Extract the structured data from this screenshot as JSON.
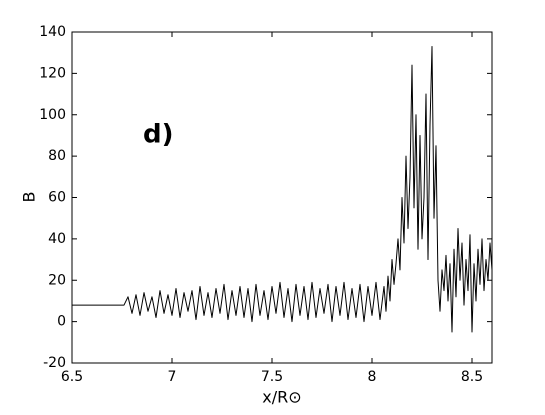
{
  "chart_data": {
    "type": "line",
    "xlabel": "x/R⊙",
    "ylabel": "B",
    "annotation": "d)",
    "color": "#000000",
    "xlim": [
      6.5,
      8.6
    ],
    "xticks": [
      6.5,
      7,
      7.5,
      8,
      8.5
    ],
    "ylim": [
      -20,
      140
    ],
    "yticks": [
      -20,
      0,
      20,
      40,
      60,
      80,
      100,
      120,
      140
    ],
    "x": [
      6.5,
      6.76,
      6.78,
      6.8,
      6.82,
      6.84,
      6.86,
      6.88,
      6.9,
      6.92,
      6.94,
      6.96,
      6.98,
      7.0,
      7.02,
      7.04,
      7.06,
      7.08,
      7.1,
      7.12,
      7.14,
      7.16,
      7.18,
      7.2,
      7.22,
      7.24,
      7.26,
      7.28,
      7.3,
      7.32,
      7.34,
      7.36,
      7.38,
      7.4,
      7.42,
      7.44,
      7.46,
      7.48,
      7.5,
      7.52,
      7.54,
      7.56,
      7.58,
      7.6,
      7.62,
      7.64,
      7.66,
      7.68,
      7.7,
      7.72,
      7.74,
      7.76,
      7.78,
      7.8,
      7.82,
      7.84,
      7.86,
      7.88,
      7.9,
      7.92,
      7.94,
      7.96,
      7.98,
      8.0,
      8.02,
      8.04,
      8.06,
      8.07,
      8.08,
      8.09,
      8.1,
      8.11,
      8.12,
      8.13,
      8.14,
      8.15,
      8.16,
      8.17,
      8.18,
      8.19,
      8.2,
      8.21,
      8.22,
      8.23,
      8.24,
      8.25,
      8.26,
      8.27,
      8.28,
      8.29,
      8.3,
      8.31,
      8.32,
      8.33,
      8.34,
      8.35,
      8.36,
      8.37,
      8.38,
      8.39,
      8.4,
      8.41,
      8.42,
      8.43,
      8.44,
      8.45,
      8.46,
      8.47,
      8.48,
      8.49,
      8.5,
      8.51,
      8.52,
      8.53,
      8.54,
      8.55,
      8.56,
      8.57,
      8.58,
      8.59,
      8.6
    ],
    "values": [
      8,
      8,
      12,
      4,
      13,
      3,
      14,
      5,
      12,
      2,
      15,
      4,
      13,
      3,
      16,
      2,
      14,
      5,
      15,
      1,
      17,
      3,
      14,
      2,
      16,
      4,
      18,
      1,
      15,
      3,
      17,
      2,
      16,
      0,
      18,
      3,
      15,
      1,
      17,
      4,
      19,
      2,
      16,
      0,
      18,
      3,
      17,
      1,
      19,
      2,
      16,
      4,
      18,
      0,
      17,
      3,
      19,
      1,
      16,
      2,
      18,
      0,
      17,
      3,
      19,
      1,
      17,
      5,
      22,
      10,
      30,
      18,
      28,
      40,
      25,
      60,
      38,
      80,
      45,
      70,
      124,
      55,
      100,
      35,
      90,
      40,
      60,
      110,
      30,
      95,
      133,
      50,
      85,
      20,
      5,
      25,
      15,
      32,
      10,
      28,
      -5,
      35,
      12,
      45,
      20,
      38,
      8,
      30,
      15,
      42,
      -5,
      28,
      10,
      35,
      18,
      40,
      15,
      30,
      20,
      38,
      25
    ]
  }
}
